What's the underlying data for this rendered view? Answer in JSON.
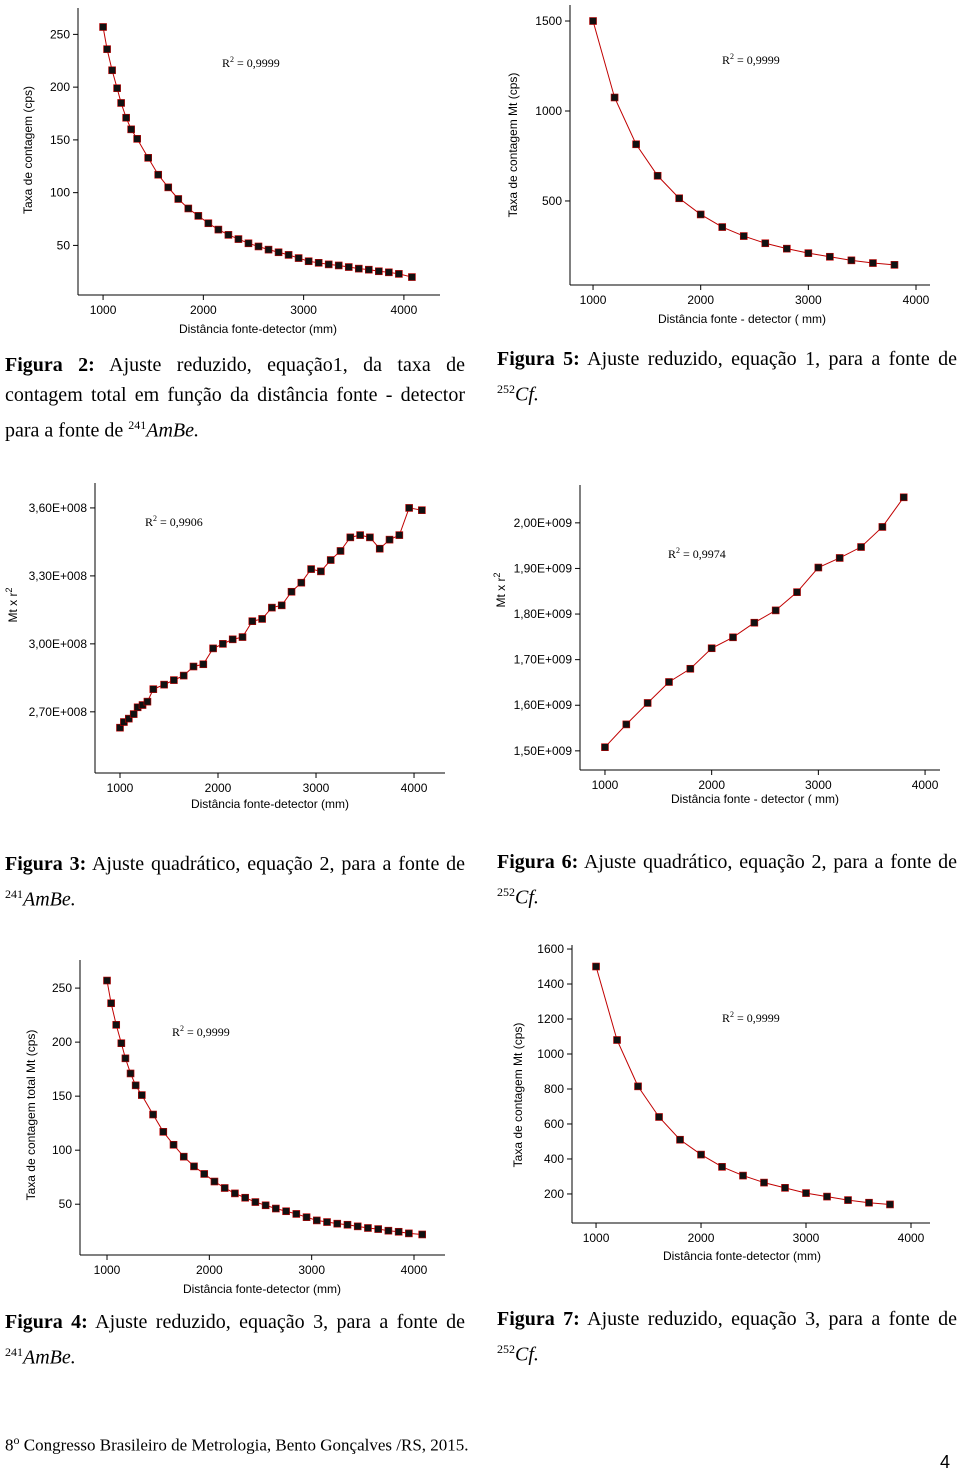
{
  "chart_data": [
    {
      "type": "scatter",
      "color": "#111111",
      "fit_color": "#c00000",
      "x_label": "Distância fonte-detector (mm)",
      "y_label": "Taxa de contagem (cps)",
      "annotation": {
        "symbol": "R",
        "exponent": "2",
        "text": " = 0,9999"
      },
      "x": [
        1000,
        1040,
        1090,
        1140,
        1180,
        1230,
        1280,
        1340,
        1450,
        1550,
        1650,
        1750,
        1850,
        1950,
        2050,
        2150,
        2250,
        2350,
        2450,
        2550,
        2650,
        2750,
        2850,
        2950,
        3050,
        3150,
        3250,
        3350,
        3450,
        3550,
        3650,
        3750,
        3850,
        3950,
        4080
      ],
      "values": [
        257,
        236,
        216,
        199,
        185,
        171,
        160,
        151,
        133,
        117,
        105,
        94,
        85,
        78,
        71,
        65,
        60,
        56,
        52,
        49,
        46,
        43.5,
        41,
        38,
        35,
        33.5,
        32,
        31,
        29.5,
        28,
        27,
        25.5,
        24.5,
        23,
        20
      ],
      "xlim": [
        750,
        4360
      ],
      "ylim": [
        3,
        275
      ],
      "xticks": [
        1000,
        2000,
        3000,
        4000
      ],
      "yticks": [
        50,
        100,
        150,
        200,
        250
      ],
      "caption": {
        "label": "Figura 2:",
        "text": "Ajuste reduzido, equação1, da taxa de contagem total em função da distância fonte - detector para a fonte de",
        "mass_number": "241",
        "nuclide": "AmBe."
      }
    },
    {
      "type": "scatter",
      "color": "#111111",
      "fit_color": "#c00000",
      "x_label": "Distância fonte - detector ( mm)",
      "y_label": "Taxa de contagem Mt (cps)",
      "annotation": {
        "symbol": "R",
        "exponent": "2",
        "text": " = 0,9999"
      },
      "x": [
        1000,
        1200,
        1400,
        1600,
        1800,
        2000,
        2200,
        2400,
        2600,
        2800,
        3000,
        3200,
        3400,
        3600,
        3800
      ],
      "values": [
        1500,
        1075,
        815,
        640,
        515,
        425,
        355,
        305,
        265,
        235,
        210,
        190,
        170,
        155,
        145
      ],
      "xlim": [
        786,
        4130
      ],
      "ylim": [
        33,
        1589
      ],
      "xticks": [
        1000,
        2000,
        3000,
        4000
      ],
      "yticks": [
        500,
        1000,
        1500
      ],
      "caption": {
        "label": "Figura 5:",
        "text": "Ajuste reduzido, equação 1, para a fonte de",
        "mass_number": "252",
        "nuclide": "Cf."
      }
    },
    {
      "type": "scatter",
      "color": "#111111",
      "fit_color": "#c00000",
      "x_label": "Distância fonte-detector (mm)",
      "y_label": "Mt x r",
      "y_label_exponent": "2",
      "annotation": {
        "symbol": "R",
        "exponent": "2",
        "text": " = 0,9906"
      },
      "x": [
        1000,
        1040,
        1090,
        1140,
        1180,
        1230,
        1280,
        1340,
        1450,
        1550,
        1650,
        1750,
        1850,
        1950,
        2050,
        2150,
        2250,
        2350,
        2450,
        2550,
        2650,
        2750,
        2850,
        2950,
        3050,
        3150,
        3250,
        3350,
        3450,
        3550,
        3650,
        3750,
        3850,
        3950,
        4080
      ],
      "values": [
        263000000,
        265500000,
        267000000,
        269000000,
        272000000,
        273000000,
        274500000,
        280000000,
        282000000,
        284000000,
        286000000,
        290000000,
        291000000,
        298000000,
        300000000,
        302000000,
        303000000,
        310000000,
        311000000,
        316000000,
        317000000,
        323000000,
        327000000,
        333000000,
        332000000,
        337000000,
        341000000,
        347000000,
        348000000,
        347000000,
        342000000,
        346000000,
        348000000,
        360000000,
        359000000
      ],
      "xlim": [
        745,
        4316
      ],
      "ylim": [
        243000000,
        371000000
      ],
      "xticks": [
        1000,
        2000,
        3000,
        4000
      ],
      "yticks": [
        {
          "value": 270000000,
          "label": "2,70E+008"
        },
        {
          "value": 300000000,
          "label": "3,00E+008"
        },
        {
          "value": 330000000,
          "label": "3,30E+008"
        },
        {
          "value": 360000000,
          "label": "3,60E+008"
        }
      ],
      "caption": {
        "label": "Figura 3:",
        "text": "Ajuste quadrático, equação 2, para a fonte de",
        "mass_number": "241",
        "nuclide": "AmBe."
      }
    },
    {
      "type": "scatter",
      "color": "#111111",
      "fit_color": "#c00000",
      "x_label": "Distância fonte - detector ( mm)",
      "y_label": "Mt x r",
      "y_label_exponent": "2",
      "annotation": {
        "symbol": "R",
        "exponent": "2",
        "text": " = 0,9974"
      },
      "x": [
        1000,
        1200,
        1400,
        1600,
        1800,
        2000,
        2200,
        2400,
        2600,
        2800,
        3000,
        3200,
        3400,
        3600,
        3800
      ],
      "values": [
        1508000000,
        1558000000,
        1605000000,
        1651000000,
        1680000000,
        1725000000,
        1749000000,
        1781000000,
        1808000000,
        1848000000,
        1902000000,
        1923000000,
        1947000000,
        1991000000,
        2056000000
      ],
      "xlim": [
        766,
        4140
      ],
      "ylim": [
        1458000000,
        2083000000
      ],
      "xticks": [
        1000,
        2000,
        3000,
        4000
      ],
      "yticks": [
        {
          "value": 1500000000,
          "label": "1,50E+009"
        },
        {
          "value": 1600000000,
          "label": "1,60E+009"
        },
        {
          "value": 1700000000,
          "label": "1,70E+009"
        },
        {
          "value": 1800000000,
          "label": "1,80E+009"
        },
        {
          "value": 1900000000,
          "label": "1,90E+009"
        },
        {
          "value": 2000000000,
          "label": "2,00E+009"
        }
      ],
      "caption": {
        "label": "Figura 6:",
        "text": "Ajuste quadrático, equação 2, para a fonte de",
        "mass_number": "252",
        "nuclide": "Cf."
      }
    },
    {
      "type": "scatter",
      "color": "#111111",
      "fit_color": "#c00000",
      "x_label": "Distância fonte-detector (mm)",
      "y_label": "Taxa de contagem total Mt (cps)",
      "annotation": {
        "symbol": "R",
        "exponent": "2",
        "text": " = 0,9999"
      },
      "x": [
        1000,
        1040,
        1090,
        1140,
        1180,
        1230,
        1280,
        1340,
        1450,
        1550,
        1650,
        1750,
        1850,
        1950,
        2050,
        2150,
        2250,
        2350,
        2450,
        2550,
        2650,
        2750,
        2850,
        2950,
        3050,
        3150,
        3250,
        3350,
        3450,
        3550,
        3650,
        3750,
        3850,
        3950,
        4080
      ],
      "values": [
        257,
        236,
        216,
        199,
        185,
        171,
        160,
        151,
        133,
        117,
        105,
        94,
        85,
        78,
        71,
        65,
        60,
        56,
        52,
        49,
        46,
        43.5,
        41,
        38,
        35,
        33.5,
        32,
        31,
        29.5,
        28,
        27,
        25.5,
        24.5,
        23,
        22
      ],
      "xlim": [
        736,
        4303
      ],
      "ylim": [
        3,
        276
      ],
      "xticks": [
        1000,
        2000,
        3000,
        4000
      ],
      "yticks": [
        50,
        100,
        150,
        200,
        250
      ],
      "caption": {
        "label": "Figura 4:",
        "text": "Ajuste reduzido, equação 3, para a fonte de",
        "mass_number": "241",
        "nuclide": "AmBe."
      }
    },
    {
      "type": "scatter",
      "color": "#111111",
      "fit_color": "#c00000",
      "x_label": "Distância fonte-detector (mm)",
      "y_label": "Taxa de contagem Mt (cps)",
      "annotation": {
        "symbol": "R",
        "exponent": "2",
        "text": " = 0,9999"
      },
      "x": [
        1000,
        1200,
        1400,
        1600,
        1800,
        2000,
        2200,
        2400,
        2600,
        2800,
        3000,
        3200,
        3400,
        3600,
        3800
      ],
      "values": [
        1500,
        1080,
        815,
        640,
        510,
        425,
        355,
        305,
        265,
        235,
        205,
        185,
        165,
        150,
        140
      ],
      "xlim": [
        771,
        4181
      ],
      "ylim": [
        34,
        1623
      ],
      "xticks": [
        1000,
        2000,
        3000,
        4000
      ],
      "yticks": [
        200,
        400,
        600,
        800,
        1000,
        1200,
        1400,
        1600
      ],
      "caption": {
        "label": "Figura 7:",
        "text": "Ajuste reduzido, equação 3, para a fonte de",
        "mass_number": "252",
        "nuclide": "Cf."
      }
    }
  ],
  "footer": {
    "ordinal": "8",
    "suffix": "o",
    "text": "Congresso Brasileiro de Metrologia, Bento Gonçalves /RS, 2015."
  },
  "page_number": "4"
}
